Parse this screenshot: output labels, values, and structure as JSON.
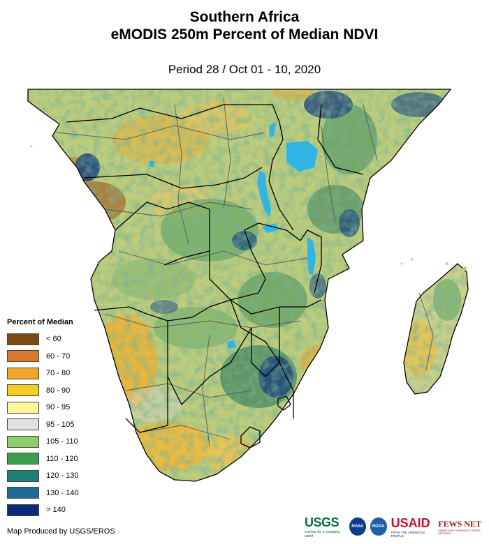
{
  "header": {
    "title_line1": "Southern Africa",
    "title_line2": "eMODIS 250m Percent of Median NDVI",
    "subtitle": "Period 28 / Oct 01 - 10, 2020"
  },
  "legend": {
    "title": "Percent of Median",
    "items": [
      {
        "label": "< 60",
        "color": "#7a4a12"
      },
      {
        "label": "60 - 70",
        "color": "#d9772e"
      },
      {
        "label": "70 - 80",
        "color": "#f2a52a"
      },
      {
        "label": "80 - 90",
        "color": "#f6cc1e"
      },
      {
        "label": "90 - 95",
        "color": "#fdf59a"
      },
      {
        "label": "95 - 105",
        "color": "#e0e0e0"
      },
      {
        "label": "105 - 110",
        "color": "#8ccf6a"
      },
      {
        "label": "110 - 120",
        "color": "#3d9e4e"
      },
      {
        "label": "120 - 130",
        "color": "#1f8074"
      },
      {
        "label": "130 - 140",
        "color": "#1f6a93"
      },
      {
        "label": "> 140",
        "color": "#0b2a78"
      }
    ]
  },
  "footer": {
    "credit": "Map Produced by USGS/EROS",
    "logos": {
      "usgs": "USGS",
      "usgs_tag": "science for a changing world",
      "nasa": "NASA",
      "noaa": "NOAA",
      "usaid": "USAID",
      "usaid_tag": "FROM THE AMERICAN PEOPLE",
      "fews": "FEWS NET",
      "fews_tag": "FAMINE EARLY WARNING SYSTEMS NETWORK"
    }
  },
  "colors": {
    "land_base": "#b9c97a",
    "water": "#29b6e8",
    "border": "#000000",
    "admin": "#555555",
    "wet": "#2b7a55",
    "very_wet": "#143f7a",
    "dry": "#e8b030"
  }
}
